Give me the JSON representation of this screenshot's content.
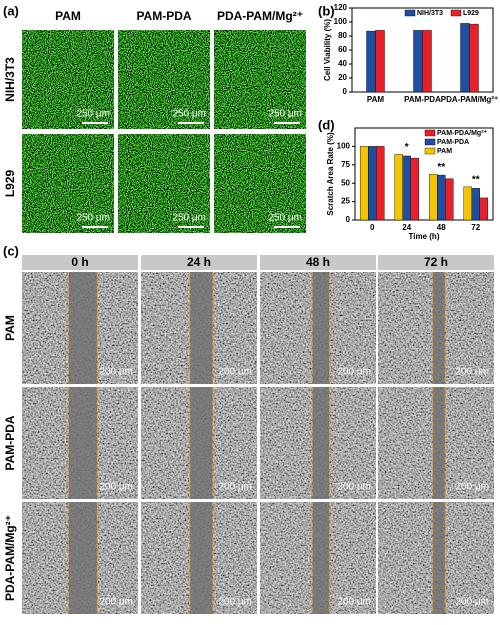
{
  "panel_labels": [
    "(a)",
    "(b)",
    "(c)",
    "(d)"
  ],
  "fluorescence": {
    "columns": [
      "PAM",
      "PAM-PDA",
      "PDA-PAM/Mg²⁺"
    ],
    "rows": [
      "NIH/3T3",
      "L929"
    ],
    "scale_bar": "250 μm"
  },
  "scratch": {
    "columns": [
      "0 h",
      "24 h",
      "48 h",
      "72 h"
    ],
    "rows": [
      "PAM",
      "PAM-PDA",
      "PDA-PAM/Mg²⁺"
    ],
    "scale_bar": "200 μm"
  },
  "chart_data": [
    {
      "type": "bar",
      "y_label": "Cell Viability (%)",
      "categories": [
        "PAM",
        "PAM-PDA",
        "PDA-PAM/Mg²⁺"
      ],
      "ylim": [
        0,
        120
      ],
      "yticks": [
        0,
        20,
        40,
        60,
        80,
        100,
        120
      ],
      "legend": "upper-right",
      "series": [
        {
          "name": "NIH/3T3",
          "color": "#1f4fa0",
          "values": [
            87,
            88,
            98
          ]
        },
        {
          "name": "L929",
          "color": "#e8202a",
          "values": [
            88,
            88,
            97
          ]
        }
      ]
    },
    {
      "type": "bar",
      "y_label": "Scratch Area Rate (%)",
      "x_label": "Time (h)",
      "categories": [
        "0",
        "24",
        "48",
        "72"
      ],
      "ylim": [
        0,
        125
      ],
      "yticks": [
        0,
        25,
        50,
        75,
        100
      ],
      "legend": "upper-right",
      "annotations": [
        null,
        "*",
        "**",
        "**"
      ],
      "series": [
        {
          "name": "PAM",
          "color": "#f5c400",
          "values": [
            100,
            89,
            62,
            45
          ]
        },
        {
          "name": "PAM-PDA",
          "color": "#1f4fa0",
          "values": [
            100,
            87,
            61,
            43
          ]
        },
        {
          "name": "PAM-PDA/Mg²⁺",
          "color": "#e8202a",
          "values": [
            100,
            84,
            56,
            30
          ]
        }
      ]
    }
  ]
}
